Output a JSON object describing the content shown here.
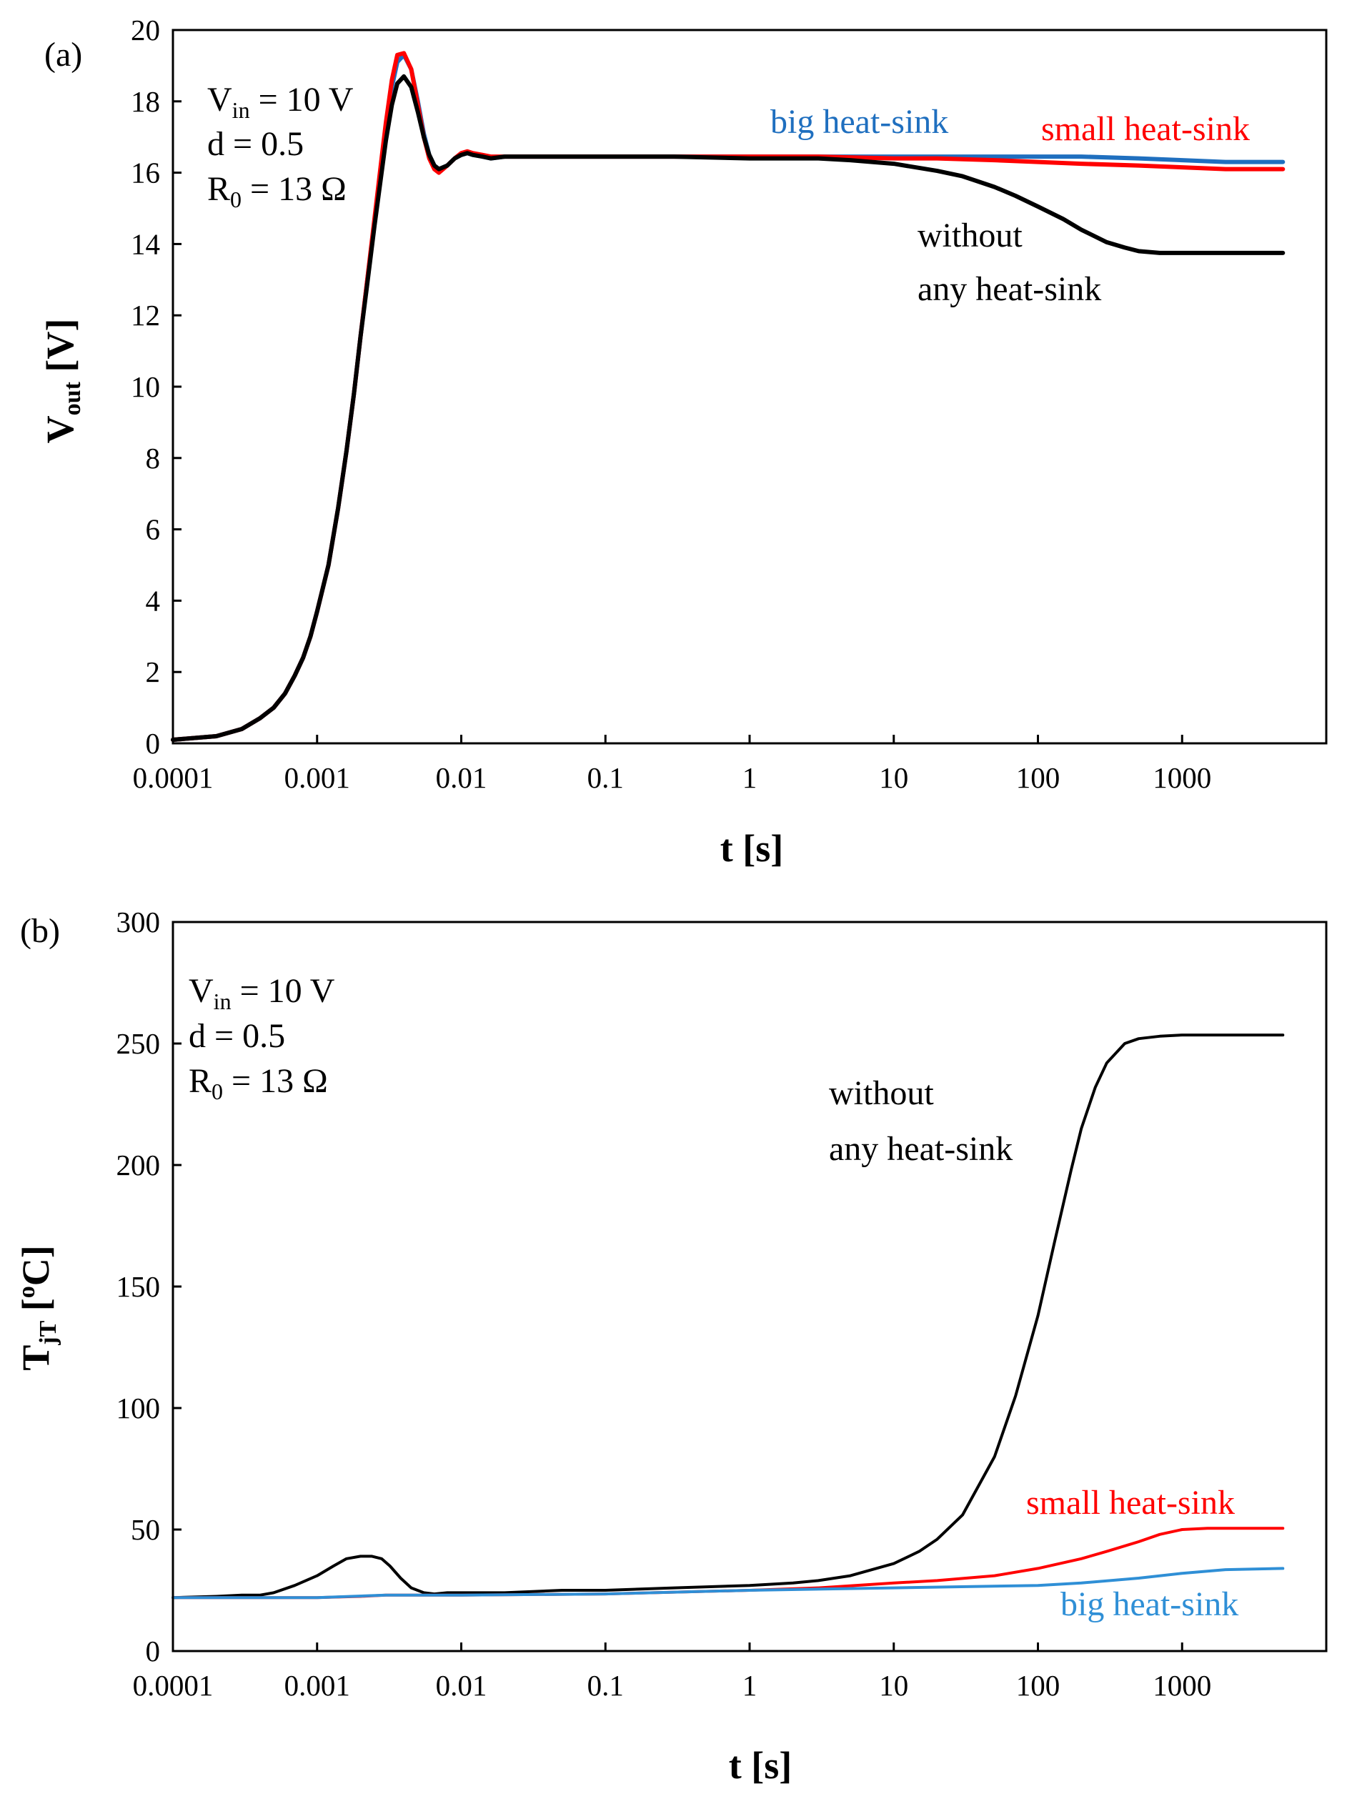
{
  "chart_data": [
    {
      "type": "line",
      "panel_label": "(a)",
      "xscale": "log",
      "xlim": [
        0.0001,
        10000
      ],
      "ylim": [
        0,
        20
      ],
      "xticks": [
        0.0001,
        0.001,
        0.01,
        0.1,
        1,
        10,
        100,
        1000
      ],
      "xtick_labels": [
        "0.0001",
        "0.001",
        "0.01",
        "0.1",
        "1",
        "10",
        "100",
        "1000"
      ],
      "yticks": [
        0,
        2,
        4,
        6,
        8,
        10,
        12,
        14,
        16,
        18,
        20
      ],
      "ytick_labels": [
        "0",
        "2",
        "4",
        "6",
        "8",
        "10",
        "12",
        "14",
        "16",
        "18",
        "20"
      ],
      "xlabel": "t [s]",
      "ylabel": {
        "main": "V",
        "sub": "out",
        "rest": " [V]"
      },
      "annotation": [
        {
          "main": "V",
          "sub": "in",
          "rest": " = 10 V"
        },
        {
          "main": "d = 0.5",
          "sub": "",
          "rest": ""
        },
        {
          "main": "R",
          "sub": "0",
          "rest": " = 13 Ω"
        }
      ],
      "series": [
        {
          "name": "big heat-sink",
          "color": "#1f6fbf",
          "label_lines": [
            "big heat-sink"
          ],
          "x": [
            0.0001,
            0.0002,
            0.0003,
            0.0004,
            0.0005,
            0.0006,
            0.0007,
            0.0008,
            0.0009,
            0.001,
            0.0012,
            0.0014,
            0.0016,
            0.0018,
            0.002,
            0.0022,
            0.0025,
            0.0028,
            0.003,
            0.0033,
            0.0036,
            0.004,
            0.0045,
            0.005,
            0.0055,
            0.006,
            0.0065,
            0.007,
            0.008,
            0.009,
            0.01,
            0.011,
            0.012,
            0.014,
            0.016,
            0.02,
            0.03,
            0.05,
            0.1,
            0.3,
            1,
            3,
            10,
            20,
            50,
            100,
            200,
            500,
            1000,
            2000,
            5000
          ],
          "y": [
            0.1,
            0.2,
            0.4,
            0.7,
            1.0,
            1.4,
            1.9,
            2.4,
            3.0,
            3.7,
            5.0,
            6.6,
            8.2,
            9.8,
            11.4,
            12.8,
            14.6,
            16.2,
            17.2,
            18.4,
            19.1,
            19.3,
            18.9,
            18.0,
            17.1,
            16.5,
            16.2,
            16.1,
            16.2,
            16.4,
            16.5,
            16.55,
            16.5,
            16.45,
            16.4,
            16.45,
            16.45,
            16.45,
            16.45,
            16.45,
            16.45,
            16.45,
            16.45,
            16.45,
            16.45,
            16.45,
            16.45,
            16.4,
            16.35,
            16.3,
            16.3
          ]
        },
        {
          "name": "small heat-sink",
          "color": "#ff0000",
          "label_lines": [
            "small heat-sink"
          ],
          "x": [
            0.0001,
            0.0002,
            0.0003,
            0.0004,
            0.0005,
            0.0006,
            0.0007,
            0.0008,
            0.0009,
            0.001,
            0.0012,
            0.0014,
            0.0016,
            0.0018,
            0.002,
            0.0022,
            0.0025,
            0.0028,
            0.003,
            0.0033,
            0.0036,
            0.004,
            0.0045,
            0.005,
            0.0055,
            0.006,
            0.0065,
            0.007,
            0.008,
            0.009,
            0.01,
            0.011,
            0.012,
            0.014,
            0.016,
            0.02,
            0.03,
            0.05,
            0.1,
            0.3,
            1,
            3,
            10,
            20,
            50,
            100,
            200,
            500,
            1000,
            2000,
            5000
          ],
          "y": [
            0.1,
            0.2,
            0.4,
            0.7,
            1.0,
            1.4,
            1.9,
            2.4,
            3.0,
            3.7,
            5.0,
            6.6,
            8.2,
            9.8,
            11.4,
            12.8,
            14.7,
            16.4,
            17.4,
            18.6,
            19.3,
            19.35,
            18.9,
            17.9,
            17.0,
            16.4,
            16.1,
            16.0,
            16.2,
            16.4,
            16.55,
            16.6,
            16.55,
            16.5,
            16.45,
            16.45,
            16.45,
            16.45,
            16.45,
            16.45,
            16.45,
            16.45,
            16.4,
            16.4,
            16.35,
            16.3,
            16.25,
            16.2,
            16.15,
            16.1,
            16.1
          ]
        },
        {
          "name": "without any heat-sink",
          "color": "#000000",
          "label_lines": [
            "without",
            "any heat-sink"
          ],
          "x": [
            0.0001,
            0.0002,
            0.0003,
            0.0004,
            0.0005,
            0.0006,
            0.0007,
            0.0008,
            0.0009,
            0.001,
            0.0012,
            0.0014,
            0.0016,
            0.0018,
            0.002,
            0.0022,
            0.0025,
            0.0028,
            0.003,
            0.0033,
            0.0036,
            0.004,
            0.0045,
            0.005,
            0.0055,
            0.006,
            0.0065,
            0.007,
            0.008,
            0.009,
            0.01,
            0.011,
            0.012,
            0.014,
            0.016,
            0.02,
            0.03,
            0.05,
            0.1,
            0.3,
            1,
            2,
            3,
            5,
            10,
            20,
            30,
            50,
            70,
            100,
            150,
            200,
            300,
            400,
            500,
            700,
            1000,
            2000,
            5000
          ],
          "y": [
            0.1,
            0.2,
            0.4,
            0.7,
            1.0,
            1.4,
            1.9,
            2.4,
            3.0,
            3.7,
            5.0,
            6.6,
            8.2,
            9.8,
            11.4,
            12.7,
            14.5,
            16.0,
            16.9,
            17.9,
            18.5,
            18.7,
            18.4,
            17.7,
            17.0,
            16.5,
            16.2,
            16.1,
            16.2,
            16.4,
            16.5,
            16.55,
            16.5,
            16.45,
            16.4,
            16.45,
            16.45,
            16.45,
            16.45,
            16.45,
            16.4,
            16.4,
            16.4,
            16.35,
            16.25,
            16.05,
            15.9,
            15.6,
            15.35,
            15.05,
            14.7,
            14.4,
            14.05,
            13.9,
            13.8,
            13.75,
            13.75,
            13.75,
            13.75
          ]
        }
      ]
    },
    {
      "type": "line",
      "panel_label": "(b)",
      "xscale": "log",
      "xlim": [
        0.0001,
        10000
      ],
      "ylim": [
        0,
        300
      ],
      "xticks": [
        0.0001,
        0.001,
        0.01,
        0.1,
        1,
        10,
        100,
        1000
      ],
      "xtick_labels": [
        "0.0001",
        "0.001",
        "0.01",
        "0.1",
        "1",
        "10",
        "100",
        "1000"
      ],
      "yticks": [
        0,
        50,
        100,
        150,
        200,
        250,
        300
      ],
      "ytick_labels": [
        "0",
        "50",
        "100",
        "150",
        "200",
        "250",
        "300"
      ],
      "xlabel": "t [s]",
      "ylabel": {
        "main": "T",
        "sub": "jT",
        "rest": " [",
        "sup": "o",
        "rest2": "C]"
      },
      "annotation": [
        {
          "main": "V",
          "sub": "in",
          "rest": " = 10 V"
        },
        {
          "main": "d = 0.5",
          "sub": "",
          "rest": ""
        },
        {
          "main": "R",
          "sub": "0",
          "rest": " = 13 Ω"
        }
      ],
      "series": [
        {
          "name": "without any heat-sink",
          "color": "#000000",
          "label_lines": [
            "without",
            "any heat-sink"
          ],
          "x": [
            0.0001,
            0.0002,
            0.0003,
            0.0004,
            0.0005,
            0.0007,
            0.001,
            0.0013,
            0.0016,
            0.002,
            0.0024,
            0.0028,
            0.0032,
            0.0038,
            0.0045,
            0.0055,
            0.0065,
            0.008,
            0.01,
            0.02,
            0.05,
            0.1,
            0.3,
            1,
            2,
            3,
            5,
            10,
            15,
            20,
            30,
            50,
            70,
            100,
            130,
            170,
            200,
            250,
            300,
            400,
            500,
            700,
            1000,
            2000,
            5000
          ],
          "y": [
            22,
            22.5,
            23,
            23,
            24,
            27,
            31,
            35,
            38,
            39,
            39,
            38,
            35,
            30,
            26,
            24,
            23.5,
            24,
            24,
            24,
            25,
            25,
            26,
            27,
            28,
            29,
            31,
            36,
            41,
            46,
            56,
            80,
            105,
            138,
            168,
            198,
            215,
            232,
            242,
            250,
            252,
            253,
            253.5,
            253.5,
            253.5
          ]
        },
        {
          "name": "small heat-sink",
          "color": "#ff0000",
          "label_lines": [
            "small heat-sink"
          ],
          "x": [
            0.0001,
            0.001,
            0.002,
            0.003,
            0.005,
            0.01,
            0.1,
            1,
            3,
            10,
            20,
            50,
            100,
            200,
            300,
            500,
            700,
            1000,
            1500,
            2000,
            5000
          ],
          "y": [
            22,
            22,
            22.5,
            23,
            23,
            23,
            23.5,
            25,
            26,
            28,
            29,
            31,
            34,
            38,
            41,
            45,
            48,
            50,
            50.5,
            50.5,
            50.5
          ]
        },
        {
          "name": "big heat-sink",
          "color": "#2f8fd6",
          "label_lines": [
            "big heat-sink"
          ],
          "x": [
            0.0001,
            0.001,
            0.003,
            0.01,
            0.1,
            1,
            10,
            100,
            200,
            500,
            1000,
            2000,
            5000
          ],
          "y": [
            22,
            22,
            23,
            23,
            23.5,
            25,
            26,
            27,
            28,
            30,
            32,
            33.5,
            34
          ]
        }
      ]
    }
  ]
}
